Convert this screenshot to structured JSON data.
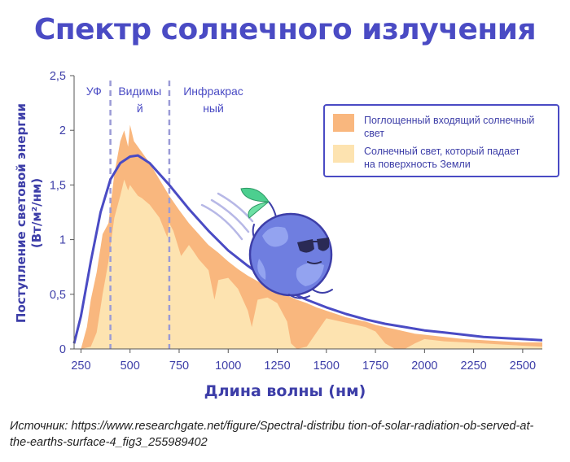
{
  "title": "Спектр солнечного излучения",
  "source_text": "Источник: https://www.researchgate.net/figure/Spectral-distribu tion-of-solar-radiation-ob-served-at-the-earths-surface-4_fig3_255989402",
  "colors": {
    "title": "#4a4bc4",
    "curve": "#4a4bc4",
    "absorbed": "#f9b77e",
    "surface": "#fde3b0",
    "divider": "#9b9bd6"
  },
  "chart_data": {
    "type": "area",
    "title": "Спектр солнечного излучения",
    "xlabel": "Длина волны (нм)",
    "ylabel": "Поступление световой энергии (Вт/м²/нм)",
    "ylabel_lines": [
      "Поступление световой энергии",
      "(Вт/м²/нм)"
    ],
    "xlim": [
      215,
      2600
    ],
    "ylim": [
      0,
      2.5
    ],
    "x_ticks": [
      250,
      500,
      750,
      1000,
      1250,
      1500,
      1750,
      2000,
      2250,
      2500
    ],
    "x_tick_labels": [
      "250",
      "500",
      "750",
      "1000",
      "1250",
      "1500",
      "1750",
      "2000",
      "2250",
      "2500"
    ],
    "y_ticks": [
      0,
      0.5,
      1,
      1.5,
      2,
      2.5
    ],
    "y_tick_labels": [
      "0",
      "0,5",
      "1",
      "1,5",
      "2",
      "2,5"
    ],
    "grid": false,
    "legend_position": "top-right",
    "region_dividers": [
      400,
      700
    ],
    "regions": [
      {
        "label": "УФ",
        "from": 215,
        "to": 400
      },
      {
        "label_lines": [
          "Видимы",
          "й"
        ],
        "from": 400,
        "to": 700
      },
      {
        "label_lines": [
          "Инфракрас",
          "ный"
        ],
        "from": 700,
        "to": 1150
      }
    ],
    "series": [
      {
        "name": "Поглощенный входящий солнечный свет",
        "name_lines": [
          "Поглощенный входящий солнечный",
          "свет"
        ],
        "kind": "area",
        "x": [
          250,
          280,
          300,
          330,
          360,
          390,
          420,
          450,
          470,
          490,
          500,
          520,
          540,
          560,
          580,
          600,
          650,
          700,
          750,
          800,
          850,
          900,
          950,
          1000,
          1050,
          1100,
          1150,
          1200,
          1250,
          1300,
          1350,
          1400,
          1450,
          1500,
          1550,
          1600,
          1650,
          1700,
          1750,
          1800,
          1850,
          1900,
          1950,
          2000,
          2100,
          2200,
          2300,
          2400,
          2500,
          2600
        ],
        "values": [
          0.0,
          0.2,
          0.45,
          0.7,
          1.05,
          1.15,
          1.6,
          1.9,
          2.0,
          1.85,
          2.05,
          1.9,
          1.85,
          1.8,
          1.75,
          1.7,
          1.55,
          1.4,
          1.27,
          1.15,
          1.05,
          0.95,
          0.88,
          0.8,
          0.73,
          0.67,
          0.62,
          0.57,
          0.53,
          0.49,
          0.45,
          0.42,
          0.38,
          0.35,
          0.32,
          0.29,
          0.27,
          0.25,
          0.22,
          0.2,
          0.18,
          0.16,
          0.14,
          0.13,
          0.11,
          0.09,
          0.08,
          0.07,
          0.06,
          0.06
        ]
      },
      {
        "name": "Солнечный свет, который падает на поверхность Земли",
        "name_lines": [
          "Солнечный свет, который падает",
          "на поверхность Земли"
        ],
        "kind": "area",
        "x": [
          250,
          300,
          330,
          360,
          390,
          420,
          450,
          470,
          490,
          500,
          520,
          540,
          560,
          580,
          600,
          650,
          690,
          700,
          720,
          760,
          800,
          820,
          850,
          900,
          930,
          950,
          1000,
          1050,
          1100,
          1120,
          1150,
          1200,
          1250,
          1300,
          1320,
          1350,
          1400,
          1450,
          1500,
          1550,
          1600,
          1650,
          1700,
          1750,
          1800,
          1850,
          1900,
          1950,
          2000,
          2050,
          2100,
          2200,
          2300,
          2400,
          2500,
          2600
        ],
        "values": [
          0.0,
          0.02,
          0.15,
          0.5,
          0.8,
          1.2,
          1.4,
          1.55,
          1.45,
          1.5,
          1.45,
          1.4,
          1.38,
          1.35,
          1.32,
          1.2,
          1.02,
          1.15,
          1.08,
          0.85,
          0.95,
          0.9,
          0.82,
          0.72,
          0.45,
          0.63,
          0.65,
          0.55,
          0.35,
          0.2,
          0.45,
          0.47,
          0.42,
          0.25,
          0.05,
          0.0,
          0.02,
          0.15,
          0.28,
          0.26,
          0.24,
          0.22,
          0.2,
          0.16,
          0.05,
          0.0,
          0.0,
          0.05,
          0.09,
          0.08,
          0.07,
          0.06,
          0.05,
          0.04,
          0.03,
          0.02
        ]
      },
      {
        "name": "blackbody-curve",
        "kind": "line",
        "x": [
          215,
          250,
          300,
          350,
          400,
          450,
          500,
          540,
          600,
          700,
          800,
          900,
          1000,
          1100,
          1200,
          1300,
          1400,
          1500,
          1600,
          1700,
          1800,
          1900,
          2000,
          2100,
          2200,
          2300,
          2400,
          2500,
          2600
        ],
        "values": [
          0.05,
          0.3,
          0.8,
          1.25,
          1.55,
          1.7,
          1.76,
          1.77,
          1.7,
          1.5,
          1.28,
          1.08,
          0.9,
          0.76,
          0.63,
          0.53,
          0.45,
          0.38,
          0.32,
          0.27,
          0.23,
          0.2,
          0.17,
          0.15,
          0.13,
          0.11,
          0.1,
          0.09,
          0.08
        ]
      }
    ]
  }
}
